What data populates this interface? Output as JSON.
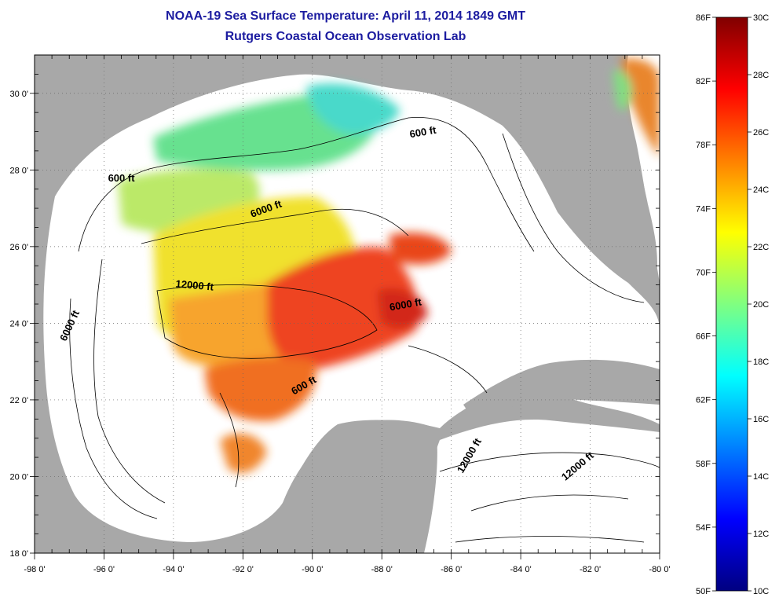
{
  "title": "NOAA-19 Sea Surface Temperature:  April 11, 2014 1849 GMT",
  "subtitle": "Rutgers Coastal Ocean Observation Lab",
  "map": {
    "lon_range": [
      -98,
      -80
    ],
    "lat_range": [
      18,
      31
    ],
    "lon_ticks": [
      {
        "value": -98,
        "label": "-98 0'"
      },
      {
        "value": -96,
        "label": "-96 0'"
      },
      {
        "value": -94,
        "label": "-94 0'"
      },
      {
        "value": -92,
        "label": "-92 0'"
      },
      {
        "value": -90,
        "label": "-90 0'"
      },
      {
        "value": -88,
        "label": "-88 0'"
      },
      {
        "value": -86,
        "label": "-86 0'"
      },
      {
        "value": -84,
        "label": "-84 0'"
      },
      {
        "value": -82,
        "label": "-82 0'"
      },
      {
        "value": -80,
        "label": "-80 0'"
      }
    ],
    "lat_ticks": [
      {
        "value": 18,
        "label": "18 0'"
      },
      {
        "value": 20,
        "label": "20 0'"
      },
      {
        "value": 22,
        "label": "22 0'"
      },
      {
        "value": 24,
        "label": "24 0'"
      },
      {
        "value": 26,
        "label": "26 0'"
      },
      {
        "value": 28,
        "label": "28 0'"
      },
      {
        "value": 30,
        "label": "30 0'"
      }
    ],
    "grid": "dotted",
    "land_color": "#a8a8a8",
    "ocean_color": "#ffffff",
    "contour_labels": [
      {
        "text": "600 ft",
        "lon": -86.8,
        "lat": 28.9,
        "rotate": -10
      },
      {
        "text": "600 ft",
        "lon": -95.5,
        "lat": 27.7,
        "rotate": 0
      },
      {
        "text": "6000 ft",
        "lon": -91.3,
        "lat": 26.9,
        "rotate": -20
      },
      {
        "text": "12000 ft",
        "lon": -93.4,
        "lat": 24.9,
        "rotate": 5
      },
      {
        "text": "6000 ft",
        "lon": -96.9,
        "lat": 23.9,
        "rotate": -65
      },
      {
        "text": "6000 ft",
        "lon": -87.3,
        "lat": 24.4,
        "rotate": -10
      },
      {
        "text": "600 ft",
        "lon": -90.2,
        "lat": 22.3,
        "rotate": -30
      },
      {
        "text": "12000 ft",
        "lon": -85.4,
        "lat": 20.5,
        "rotate": -60
      },
      {
        "text": "12000 ft",
        "lon": -82.3,
        "lat": 20.2,
        "rotate": -40
      }
    ]
  },
  "colorbar": {
    "range_c": [
      10,
      30
    ],
    "range_f": [
      50,
      86
    ],
    "colors": [
      "#000080",
      "#0000ff",
      "#0080ff",
      "#00ffff",
      "#80ff80",
      "#ffff00",
      "#ff8000",
      "#ff0000",
      "#800000"
    ],
    "labels_c": [
      {
        "value": 10,
        "label": "10C"
      },
      {
        "value": 12,
        "label": "12C"
      },
      {
        "value": 14,
        "label": "14C"
      },
      {
        "value": 16,
        "label": "16C"
      },
      {
        "value": 18,
        "label": "18C"
      },
      {
        "value": 20,
        "label": "20C"
      },
      {
        "value": 22,
        "label": "22C"
      },
      {
        "value": 24,
        "label": "24C"
      },
      {
        "value": 26,
        "label": "26C"
      },
      {
        "value": 28,
        "label": "28C"
      },
      {
        "value": 30,
        "label": "30C"
      }
    ],
    "labels_f": [
      {
        "value": 50,
        "label": "50F"
      },
      {
        "value": 54,
        "label": "54F"
      },
      {
        "value": 58,
        "label": "58F"
      },
      {
        "value": 62,
        "label": "62F"
      },
      {
        "value": 66,
        "label": "66F"
      },
      {
        "value": 70,
        "label": "70F"
      },
      {
        "value": 74,
        "label": "74F"
      },
      {
        "value": 78,
        "label": "78F"
      },
      {
        "value": 82,
        "label": "82F"
      },
      {
        "value": 86,
        "label": "86F"
      }
    ]
  }
}
